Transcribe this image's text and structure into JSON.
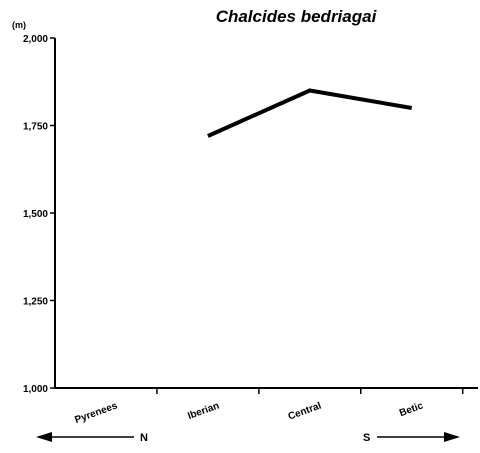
{
  "chart_data": {
    "type": "line",
    "title": "Chalcides bedriagai",
    "ylabel": "(m)",
    "xlabel": "",
    "categories": [
      "Pyrenees",
      "Iberian",
      "Central",
      "Betic"
    ],
    "ylim": [
      1000,
      2000
    ],
    "yticks": [
      1000,
      1250,
      1500,
      1750,
      2000
    ],
    "ytick_labels": [
      "1,000",
      "1,250",
      "1,500",
      "1,750",
      "2,000"
    ],
    "series": [
      {
        "values": [
          null,
          1720,
          1850,
          1800
        ]
      }
    ],
    "direction_labels": {
      "north": "N",
      "south": "S"
    },
    "colors": {
      "line": "#000000",
      "axis": "#000000"
    },
    "grid": false,
    "legend": "none"
  }
}
